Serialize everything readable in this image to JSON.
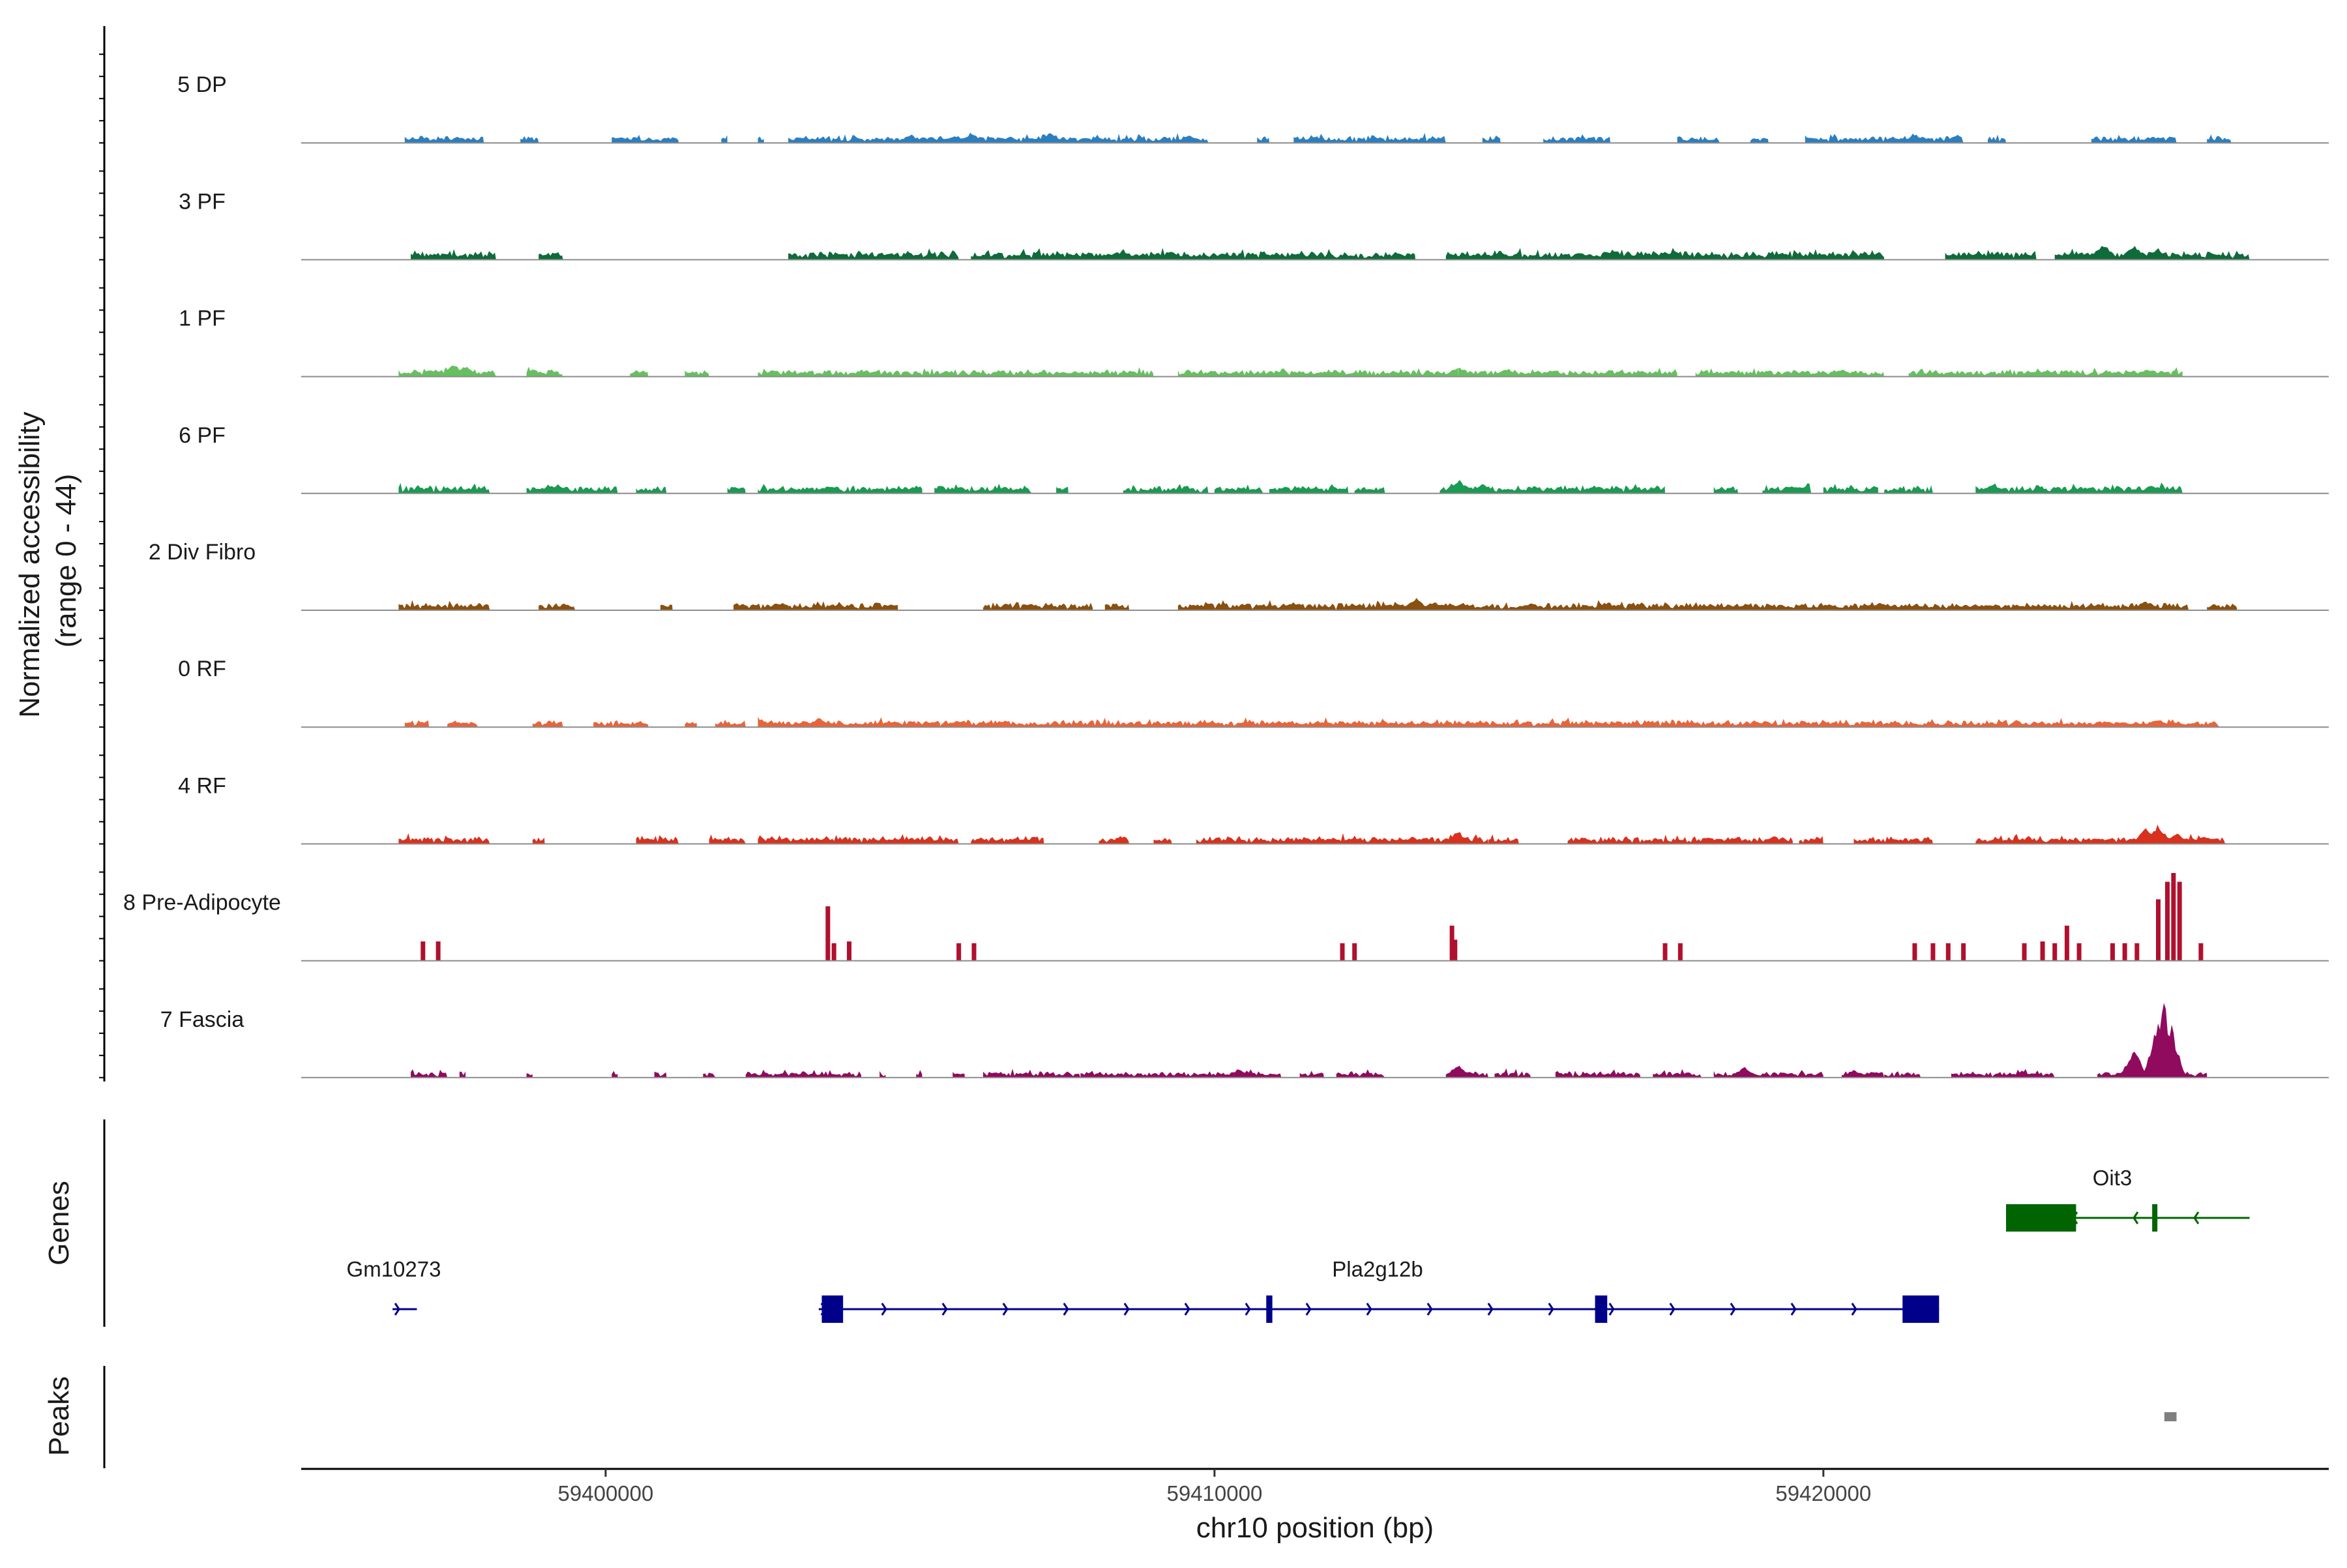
{
  "chart_data": {
    "type": "area",
    "title": "",
    "ylabel": "Normalized accessibility (range 0 - 44)",
    "ylabel_lines": [
      "Normalized accessibility",
      "(range 0 - 44)"
    ],
    "ylim": [
      0,
      44
    ],
    "xlabel": "chr10 position (bp)",
    "xlim": [
      59395000,
      59428300
    ],
    "x_ticks": [
      59400000,
      59410000,
      59420000
    ],
    "x_tick_labels": [
      "59400000",
      "59410000",
      "59420000"
    ],
    "series": [
      {
        "name": "5 DP",
        "color": "#2b7fc0",
        "base": 4,
        "noise": 2.5,
        "regions": [
          [
            59396700,
            59398000
          ],
          [
            59398600,
            59398900
          ],
          [
            59400100,
            59401200
          ],
          [
            59401900,
            59402000
          ],
          [
            59402500,
            59402600
          ],
          [
            59403000,
            59409900
          ],
          [
            59410700,
            59410900
          ],
          [
            59411300,
            59413800
          ],
          [
            59414400,
            59414700
          ],
          [
            59415400,
            59416500
          ],
          [
            59417600,
            59418300
          ],
          [
            59418800,
            59419100
          ],
          [
            59419700,
            59422300
          ],
          [
            59422700,
            59423000
          ],
          [
            59424400,
            59425800
          ],
          [
            59426300,
            59426700
          ]
        ],
        "peaks": [
          [
            59402900,
            9
          ],
          [
            59405000,
            10
          ],
          [
            59406000,
            11
          ],
          [
            59407300,
            11
          ],
          [
            59409600,
            9
          ],
          [
            59413800,
            8
          ],
          [
            59421500,
            10
          ],
          [
            59422200,
            9
          ]
        ]
      },
      {
        "name": "3 PF",
        "color": "#0f6b3a",
        "base": 5,
        "noise": 3,
        "regions": [
          [
            59396800,
            59398200
          ],
          [
            59398900,
            59399300
          ],
          [
            59403000,
            59405800
          ],
          [
            59406000,
            59413300
          ],
          [
            59413800,
            59421000
          ],
          [
            59422000,
            59423500
          ],
          [
            59423800,
            59427000
          ]
        ],
        "peaks": [
          [
            59399100,
            6
          ],
          [
            59408400,
            8
          ],
          [
            59411400,
            8
          ],
          [
            59413000,
            8
          ],
          [
            59414700,
            10
          ],
          [
            59416000,
            9
          ],
          [
            59416600,
            10
          ],
          [
            59417400,
            9
          ],
          [
            59424600,
            18
          ],
          [
            59425100,
            16
          ],
          [
            59425500,
            12
          ]
        ]
      },
      {
        "name": "1 PF",
        "color": "#66c060",
        "base": 4,
        "noise": 2.5,
        "regions": [
          [
            59396600,
            59398200
          ],
          [
            59398700,
            59399300
          ],
          [
            59400400,
            59400700
          ],
          [
            59401300,
            59401700
          ],
          [
            59402500,
            59409000
          ],
          [
            59409400,
            59414000
          ],
          [
            59414000,
            59417600
          ],
          [
            59417900,
            59421000
          ],
          [
            59421400,
            59425900
          ]
        ],
        "peaks": [
          [
            59397500,
            15
          ],
          [
            59397700,
            12
          ],
          [
            59398800,
            8
          ],
          [
            59414000,
            12
          ],
          [
            59414800,
            9
          ],
          [
            59420300,
            8
          ],
          [
            59425300,
            8
          ]
        ]
      },
      {
        "name": "6 PF",
        "color": "#1a9a52",
        "base": 4,
        "noise": 3.5,
        "regions": [
          [
            59396600,
            59398100
          ],
          [
            59398700,
            59400200
          ],
          [
            59400500,
            59401000
          ],
          [
            59402000,
            59402300
          ],
          [
            59402500,
            59405200
          ],
          [
            59405400,
            59407000
          ],
          [
            59407400,
            59407600
          ],
          [
            59408500,
            59409900
          ],
          [
            59410000,
            59410800
          ],
          [
            59410900,
            59412200
          ],
          [
            59412300,
            59412800
          ],
          [
            59413700,
            59417400
          ],
          [
            59418200,
            59418600
          ],
          [
            59419000,
            59419800
          ],
          [
            59420000,
            59420900
          ],
          [
            59421000,
            59421800
          ],
          [
            59422500,
            59425900
          ]
        ],
        "peaks": [
          [
            59399200,
            10
          ],
          [
            59405100,
            9
          ],
          [
            59414000,
            16
          ],
          [
            59414400,
            12
          ],
          [
            59419800,
            14
          ],
          [
            59425400,
            10
          ]
        ]
      },
      {
        "name": "2 Div Fibro",
        "color": "#8a5010",
        "base": 4,
        "noise": 3,
        "regions": [
          [
            59396600,
            59398100
          ],
          [
            59398900,
            59399500
          ],
          [
            59400900,
            59401100
          ],
          [
            59402100,
            59403000
          ],
          [
            59403000,
            59404800
          ],
          [
            59406200,
            59408000
          ],
          [
            59408200,
            59408600
          ],
          [
            59409400,
            59412000
          ],
          [
            59412000,
            59426000
          ],
          [
            59426300,
            59426800
          ]
        ],
        "peaks": [
          [
            59402900,
            8
          ],
          [
            59413300,
            14
          ],
          [
            59413600,
            10
          ],
          [
            59414100,
            8
          ],
          [
            59420100,
            8
          ],
          [
            59425300,
            10
          ]
        ]
      },
      {
        "name": "0 RF",
        "color": "#e8643a",
        "base": 4,
        "noise": 2.5,
        "regions": [
          [
            59396700,
            59397100
          ],
          [
            59397400,
            59397900
          ],
          [
            59398800,
            59399300
          ],
          [
            59399800,
            59400700
          ],
          [
            59401300,
            59401500
          ],
          [
            59401800,
            59402300
          ],
          [
            59402500,
            59405500
          ],
          [
            59405500,
            59426500
          ]
        ],
        "peaks": [
          [
            59402500,
            11
          ],
          [
            59403500,
            10
          ],
          [
            59411700,
            7
          ],
          [
            59425500,
            8
          ]
        ]
      },
      {
        "name": "4 RF",
        "color": "#d8321e",
        "base": 4,
        "noise": 3,
        "regions": [
          [
            59396600,
            59398100
          ],
          [
            59398800,
            59399000
          ],
          [
            59400500,
            59401200
          ],
          [
            59401700,
            59402300
          ],
          [
            59402500,
            59405800
          ],
          [
            59406000,
            59407200
          ],
          [
            59408100,
            59408600
          ],
          [
            59409000,
            59409300
          ],
          [
            59409700,
            59414500
          ],
          [
            59414500,
            59415000
          ],
          [
            59415800,
            59419500
          ],
          [
            59419600,
            59420000
          ],
          [
            59420500,
            59421800
          ],
          [
            59422500,
            59426600
          ]
        ],
        "peaks": [
          [
            59399000,
            6
          ],
          [
            59414000,
            14
          ],
          [
            59420300,
            7
          ],
          [
            59425300,
            18
          ],
          [
            59425500,
            22
          ],
          [
            59425800,
            12
          ]
        ]
      },
      {
        "name": "8 Pre-Adipocyte",
        "color": "#b0102e",
        "bars": [
          [
            59397000,
            11
          ],
          [
            59397250,
            11
          ],
          [
            59403650,
            31
          ],
          [
            59403750,
            10
          ],
          [
            59404000,
            11
          ],
          [
            59405800,
            10
          ],
          [
            59406050,
            10
          ],
          [
            59412100,
            10
          ],
          [
            59412300,
            10
          ],
          [
            59413900,
            20
          ],
          [
            59413950,
            12
          ],
          [
            59417400,
            10
          ],
          [
            59417650,
            10
          ],
          [
            59421500,
            10
          ],
          [
            59421800,
            10
          ],
          [
            59422050,
            10
          ],
          [
            59422300,
            10
          ],
          [
            59423300,
            10
          ],
          [
            59423600,
            11
          ],
          [
            59423800,
            10
          ],
          [
            59424000,
            20
          ],
          [
            59424200,
            10
          ],
          [
            59424750,
            10
          ],
          [
            59424950,
            10
          ],
          [
            59425150,
            10
          ],
          [
            59425500,
            35
          ],
          [
            59425650,
            45
          ],
          [
            59425750,
            50
          ],
          [
            59425850,
            45
          ],
          [
            59426200,
            10
          ]
        ]
      },
      {
        "name": "7 Fascia",
        "color": "#900a5e",
        "base": 3,
        "noise": 3,
        "regions": [
          [
            59396800,
            59397400
          ],
          [
            59397600,
            59397700
          ],
          [
            59398700,
            59398800
          ],
          [
            59400100,
            59400200
          ],
          [
            59400800,
            59401000
          ],
          [
            59401600,
            59401800
          ],
          [
            59402300,
            59404200
          ],
          [
            59404500,
            59404600
          ],
          [
            59405100,
            59405200
          ],
          [
            59405700,
            59405900
          ],
          [
            59406200,
            59407800
          ],
          [
            59407800,
            59411100
          ],
          [
            59411400,
            59411800
          ],
          [
            59412000,
            59412800
          ],
          [
            59413800,
            59414500
          ],
          [
            59414600,
            59415200
          ],
          [
            59415600,
            59417000
          ],
          [
            59417200,
            59418000
          ],
          [
            59418200,
            59420000
          ],
          [
            59420300,
            59421000
          ],
          [
            59421000,
            59421600
          ],
          [
            59422100,
            59423800
          ],
          [
            59424500,
            59426300
          ]
        ],
        "peaks": [
          [
            59410400,
            10
          ],
          [
            59414000,
            14
          ],
          [
            59418700,
            12
          ],
          [
            59420500,
            9
          ],
          [
            59425100,
            30
          ],
          [
            59425500,
            65
          ],
          [
            59425600,
            80
          ],
          [
            59425700,
            60
          ]
        ]
      }
    ],
    "genes": [
      {
        "name": "Gm10273",
        "strand": "+",
        "color": "#00008b",
        "start": 59396500,
        "end": 59396900,
        "exons": []
      },
      {
        "name": "Pla2g12b",
        "strand": "+",
        "color": "#00008b",
        "start": 59403500,
        "end": 59421900,
        "exons": [
          [
            59403550,
            59403900
          ],
          [
            59410850,
            59410950
          ],
          [
            59416250,
            59416450
          ],
          [
            59421300,
            59421900
          ]
        ]
      },
      {
        "name": "Oit3",
        "strand": "-",
        "color": "#006400",
        "start": 59423000,
        "end": 59427000,
        "exons": [
          [
            59423000,
            59424150
          ],
          [
            59425400,
            59425480
          ]
        ]
      }
    ],
    "peaks_track": [
      [
        59425600,
        59425800
      ]
    ],
    "panel_titles": {
      "genes": "Genes",
      "peaks": "Peaks"
    }
  }
}
